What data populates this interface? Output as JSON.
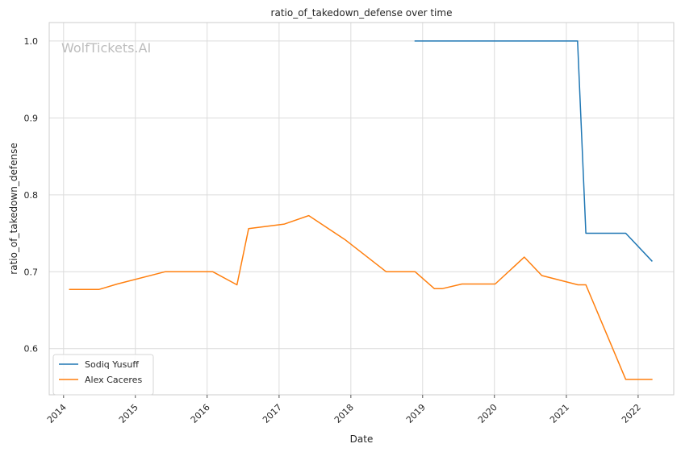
{
  "chart_data": {
    "type": "line",
    "title": "ratio_of_takedown_defense over time",
    "xlabel": "Date",
    "ylabel": "ratio_of_takedown_defense",
    "watermark": "WolfTickets.AI",
    "xlim": [
      "2013-10-20",
      "2022-07-01"
    ],
    "ylim": [
      0.54,
      1.024
    ],
    "x_ticks": [
      {
        "date": "2014-01-01",
        "label": "2014"
      },
      {
        "date": "2015-01-01",
        "label": "2015"
      },
      {
        "date": "2016-01-01",
        "label": "2016"
      },
      {
        "date": "2017-01-01",
        "label": "2017"
      },
      {
        "date": "2018-01-01",
        "label": "2018"
      },
      {
        "date": "2019-01-01",
        "label": "2019"
      },
      {
        "date": "2020-01-01",
        "label": "2020"
      },
      {
        "date": "2021-01-01",
        "label": "2021"
      },
      {
        "date": "2022-01-01",
        "label": "2022"
      }
    ],
    "y_ticks": [
      {
        "value": 0.6,
        "label": "0.6"
      },
      {
        "value": 0.7,
        "label": "0.7"
      },
      {
        "value": 0.8,
        "label": "0.8"
      },
      {
        "value": 0.9,
        "label": "0.9"
      },
      {
        "value": 1.0,
        "label": "1.0"
      }
    ],
    "grid": true,
    "legend_position": "bottom-left",
    "series": [
      {
        "name": "Sodiq Yusuff",
        "color": "#1f77b4",
        "points": [
          {
            "x": "2018-11-24",
            "y": 1.0
          },
          {
            "x": "2021-02-27",
            "y": 1.0
          },
          {
            "x": "2021-04-10",
            "y": 0.75
          },
          {
            "x": "2021-10-30",
            "y": 0.75
          },
          {
            "x": "2022-03-12",
            "y": 0.714
          }
        ]
      },
      {
        "name": "Alex Caceres",
        "color": "#ff7f0e",
        "points": [
          {
            "x": "2014-02-01",
            "y": 0.677
          },
          {
            "x": "2014-07-01",
            "y": 0.677
          },
          {
            "x": "2014-10-01",
            "y": 0.684
          },
          {
            "x": "2015-06-01",
            "y": 0.7
          },
          {
            "x": "2016-01-30",
            "y": 0.7
          },
          {
            "x": "2016-06-01",
            "y": 0.683
          },
          {
            "x": "2016-07-30",
            "y": 0.756
          },
          {
            "x": "2017-01-28",
            "y": 0.762
          },
          {
            "x": "2017-06-01",
            "y": 0.773
          },
          {
            "x": "2017-12-01",
            "y": 0.742
          },
          {
            "x": "2018-06-30",
            "y": 0.7
          },
          {
            "x": "2018-11-24",
            "y": 0.7
          },
          {
            "x": "2019-03-02",
            "y": 0.678
          },
          {
            "x": "2019-04-10",
            "y": 0.678
          },
          {
            "x": "2019-07-20",
            "y": 0.684
          },
          {
            "x": "2020-01-05",
            "y": 0.684
          },
          {
            "x": "2020-06-01",
            "y": 0.719
          },
          {
            "x": "2020-08-29",
            "y": 0.695
          },
          {
            "x": "2021-03-01",
            "y": 0.683
          },
          {
            "x": "2021-04-10",
            "y": 0.683
          },
          {
            "x": "2021-10-30",
            "y": 0.56
          },
          {
            "x": "2022-03-12",
            "y": 0.56
          }
        ]
      }
    ]
  }
}
